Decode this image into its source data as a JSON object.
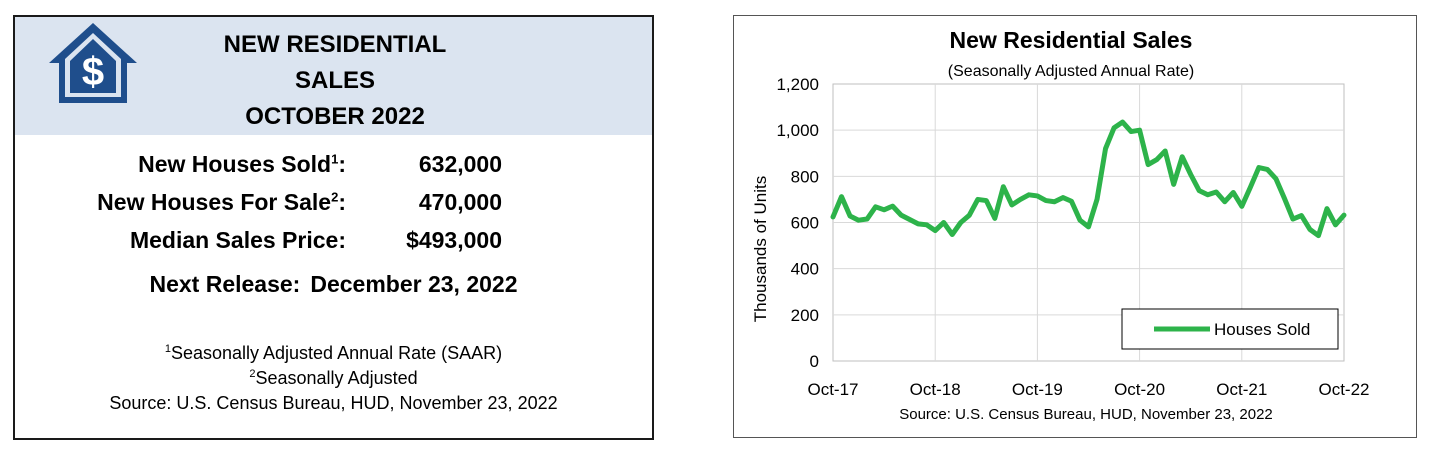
{
  "summary": {
    "title_lines": [
      "NEW RESIDENTIAL",
      "SALES",
      "OCTOBER 2022"
    ],
    "logo_icon": "house-dollar-icon",
    "rows": [
      {
        "label": "New Houses Sold",
        "sup": "1",
        "value": "632,000"
      },
      {
        "label": "New Houses For Sale",
        "sup": "2",
        "value": "470,000"
      },
      {
        "label": "Median Sales Price",
        "sup": "",
        "value": "$493,000"
      }
    ],
    "next_release_label": "Next Release:",
    "next_release_date": "December 23, 2022",
    "notes": [
      {
        "sup": "1",
        "text": "Seasonally Adjusted Annual Rate (SAAR)"
      },
      {
        "sup": "2",
        "text": "Seasonally Adjusted"
      },
      {
        "sup": "",
        "text": "Source:  U.S. Census Bureau, HUD, November 23, 2022"
      }
    ],
    "colors": {
      "header_bg": "#dbe4f0",
      "logo": "#1f4e8c"
    }
  },
  "chart_data": {
    "type": "line",
    "title": "New Residential Sales",
    "subtitle": "(Seasonally Adjusted Annual Rate)",
    "ylabel": "Thousands of Units",
    "xlabel": "",
    "source": "Source:  U.S. Census Bureau, HUD, November 23, 2022",
    "ylim": [
      0,
      1200
    ],
    "yticks": [
      0,
      200,
      400,
      600,
      800,
      1000,
      1200
    ],
    "ytick_labels": [
      "0",
      "200",
      "400",
      "600",
      "800",
      "1,000",
      "1,200"
    ],
    "xtick_labels": [
      "Oct-17",
      "Oct-18",
      "Oct-19",
      "Oct-20",
      "Oct-21",
      "Oct-22"
    ],
    "xtick_index": [
      0,
      12,
      24,
      36,
      48,
      60
    ],
    "grid": true,
    "legend_position": "bottom-right",
    "series": [
      {
        "name": "Houses Sold",
        "color": "#2db34a",
        "values": [
          624,
          712,
          628,
          610,
          615,
          668,
          655,
          671,
          632,
          613,
          594,
          590,
          565,
          600,
          548,
          600,
          631,
          700,
          695,
          618,
          755,
          676,
          700,
          720,
          715,
          695,
          690,
          708,
          692,
          610,
          581,
          700,
          920,
          1010,
          1035,
          994,
          1000,
          851,
          872,
          910,
          765,
          885,
          808,
          738,
          720,
          732,
          690,
          730,
          670,
          752,
          838,
          830,
          790,
          705,
          615,
          630,
          570,
          543,
          660,
          590,
          632
        ]
      }
    ]
  }
}
